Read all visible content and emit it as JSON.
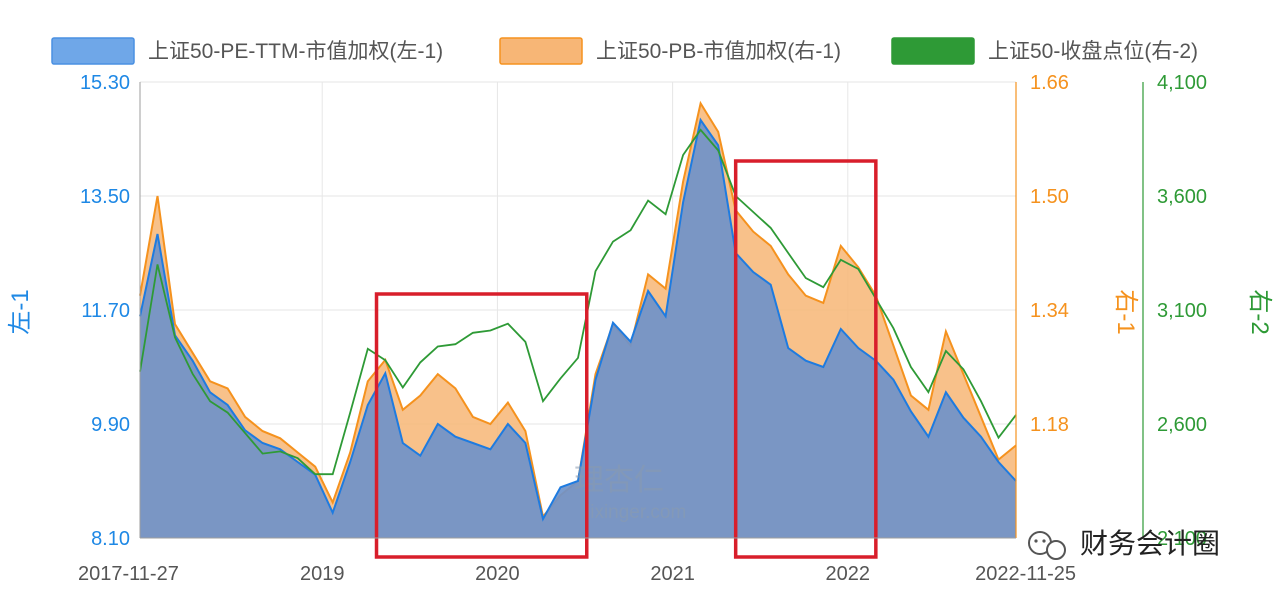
{
  "chart_data": {
    "type": "area",
    "legend": [
      {
        "label": "上证50-PE-TTM-市值加权(左-1)",
        "color": "#4a90e2",
        "fill": "#6fa7e8"
      },
      {
        "label": "上证50-PB-市值加权(右-1)",
        "color": "#f5921e",
        "fill": "#f7b676"
      },
      {
        "label": "上证50-收盘点位(右-2)",
        "color": "#2e9a36",
        "fill": "#2e9a36"
      }
    ],
    "legend_position": "top",
    "axes": {
      "left": {
        "title": "左-1",
        "ticks": [
          "15.30",
          "13.50",
          "11.70",
          "9.90",
          "8.10"
        ],
        "range": [
          8.1,
          15.3
        ],
        "color": "#1e88e5"
      },
      "right1": {
        "title": "右-1",
        "ticks": [
          "1.66",
          "1.50",
          "1.34",
          "1.18"
        ],
        "range": [
          1.02,
          1.66
        ],
        "color": "#f5921e"
      },
      "right2": {
        "title": "右-2",
        "ticks": [
          "4,100",
          "3,600",
          "3,100",
          "2,600",
          "2,100"
        ],
        "range": [
          2100,
          4100
        ],
        "color": "#2e9a36"
      },
      "x": {
        "ticks": [
          "2017-11-27",
          "2019",
          "2020",
          "2021",
          "2022",
          "2022-11-25"
        ]
      }
    },
    "grid": true,
    "x": [
      2017.9,
      2018.0,
      2018.1,
      2018.2,
      2018.3,
      2018.4,
      2018.5,
      2018.6,
      2018.7,
      2018.8,
      2018.9,
      2019.0,
      2019.1,
      2019.2,
      2019.3,
      2019.4,
      2019.5,
      2019.6,
      2019.7,
      2019.8,
      2019.9,
      2020.0,
      2020.1,
      2020.2,
      2020.3,
      2020.4,
      2020.5,
      2020.6,
      2020.7,
      2020.8,
      2020.9,
      2021.0,
      2021.1,
      2021.2,
      2021.3,
      2021.4,
      2021.5,
      2021.6,
      2021.7,
      2021.8,
      2021.9,
      2022.0,
      2022.1,
      2022.2,
      2022.3,
      2022.4,
      2022.5,
      2022.6,
      2022.7,
      2022.8,
      2022.9
    ],
    "series": [
      {
        "name": "上证50-PE-TTM-市值加权(左-1)",
        "axis": "left",
        "values": [
          11.6,
          12.9,
          11.3,
          10.9,
          10.4,
          10.2,
          9.8,
          9.6,
          9.5,
          9.3,
          9.1,
          8.5,
          9.3,
          10.2,
          10.7,
          9.6,
          9.4,
          9.9,
          9.7,
          9.6,
          9.5,
          9.9,
          9.6,
          8.4,
          8.9,
          9.0,
          10.6,
          11.5,
          11.2,
          12.0,
          11.6,
          13.4,
          14.7,
          14.3,
          12.6,
          12.3,
          12.1,
          11.1,
          10.9,
          10.8,
          11.4,
          11.1,
          10.9,
          10.6,
          10.1,
          9.7,
          10.4,
          10.0,
          9.7,
          9.3,
          9.0
        ]
      },
      {
        "name": "上证50-PB-市值加权(右-1)",
        "axis": "right1",
        "values": [
          1.36,
          1.5,
          1.32,
          1.28,
          1.24,
          1.23,
          1.19,
          1.17,
          1.16,
          1.14,
          1.12,
          1.07,
          1.14,
          1.24,
          1.27,
          1.2,
          1.22,
          1.25,
          1.23,
          1.19,
          1.18,
          1.21,
          1.17,
          1.05,
          1.08,
          1.1,
          1.25,
          1.32,
          1.29,
          1.39,
          1.37,
          1.52,
          1.63,
          1.59,
          1.48,
          1.45,
          1.43,
          1.39,
          1.36,
          1.35,
          1.43,
          1.4,
          1.36,
          1.29,
          1.22,
          1.2,
          1.31,
          1.25,
          1.19,
          1.13,
          1.15
        ]
      },
      {
        "name": "上证50-收盘点位(右-2)",
        "axis": "right2",
        "values": [
          2830,
          3300,
          2980,
          2820,
          2700,
          2650,
          2560,
          2470,
          2480,
          2450,
          2380,
          2380,
          2650,
          2930,
          2880,
          2760,
          2870,
          2940,
          2950,
          3000,
          3010,
          3040,
          2960,
          2700,
          2800,
          2890,
          3270,
          3400,
          3450,
          3580,
          3520,
          3780,
          3890,
          3800,
          3600,
          3530,
          3460,
          3350,
          3240,
          3200,
          3320,
          3280,
          3150,
          3020,
          2850,
          2740,
          2920,
          2840,
          2700,
          2540,
          2640
        ]
      }
    ],
    "annotations": {
      "highlight_boxes": [
        {
          "from": 2019.25,
          "to": 2020.45,
          "color": "#d81e2b"
        },
        {
          "from": 2021.3,
          "to": 2022.1,
          "color": "#d81e2b"
        }
      ],
      "watermark": {
        "main": "理杏仁",
        "sub": "lixinger.com"
      },
      "source": "财务会计圈"
    }
  }
}
